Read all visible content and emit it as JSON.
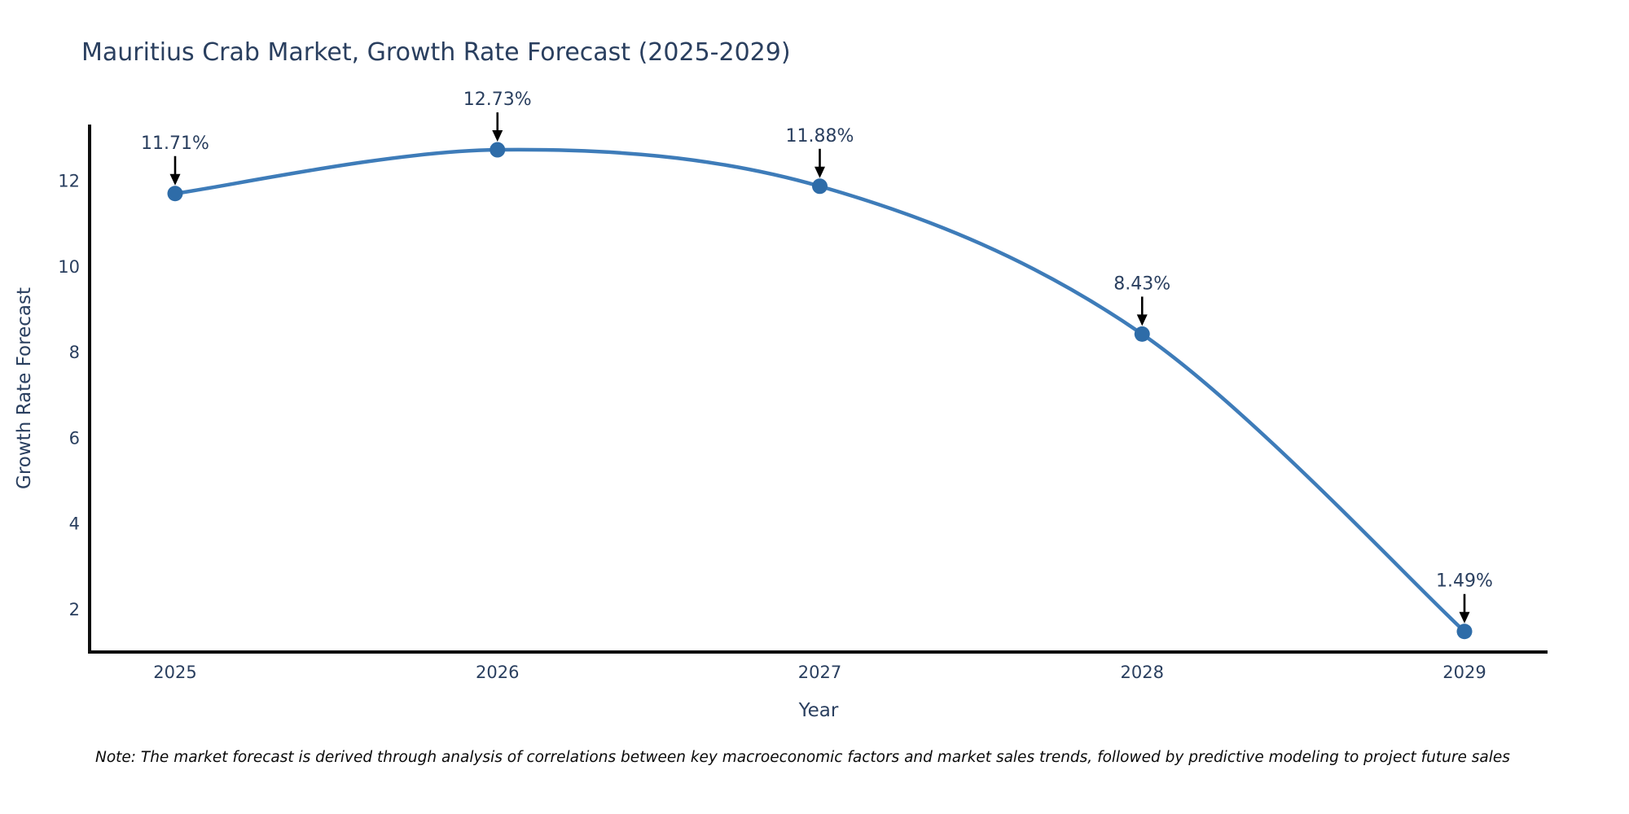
{
  "title": "Mauritius Crab Market, Growth Rate Forecast (2025-2029)",
  "note": "Note: The market forecast is derived through analysis of correlations between key macroeconomic factors and market sales trends, followed by predictive modeling to project future sales",
  "chart_data": {
    "type": "line",
    "title": "Mauritius Crab Market, Growth Rate Forecast (2025-2029)",
    "xlabel": "Year",
    "ylabel": "Growth Rate Forecast",
    "categories": [
      "2025",
      "2026",
      "2027",
      "2028",
      "2029"
    ],
    "series": [
      {
        "name": "Growth Rate Forecast",
        "values": [
          11.71,
          12.73,
          11.88,
          8.43,
          1.49
        ]
      }
    ],
    "point_labels": [
      "11.71%",
      "12.73%",
      "11.88%",
      "8.43%",
      "1.49%"
    ],
    "yticks": [
      2,
      4,
      6,
      8,
      10,
      12
    ],
    "ylim": [
      1.01,
      13.32
    ],
    "line_shape": "spline",
    "grid": false,
    "legend": "none",
    "colors": {
      "line": "#3e7cb9",
      "marker": "#2e6ca8",
      "axis": "#0d0d0d",
      "text": "#2a3f5f",
      "annotation": "#2a3f5f",
      "arrow": "#000000",
      "background": "#ffffff"
    }
  }
}
